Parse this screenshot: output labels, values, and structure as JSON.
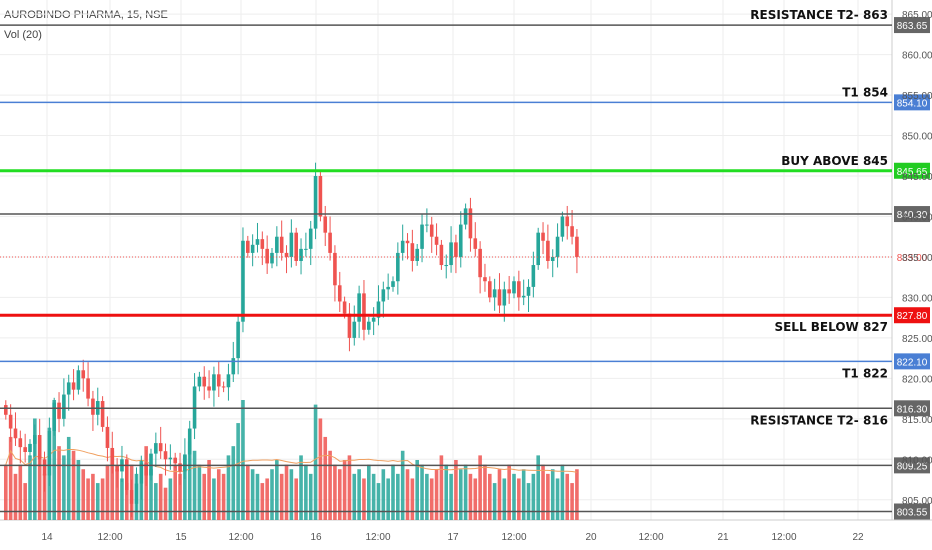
{
  "header": {
    "symbol_line": "AUROBINDO PHARMA, 15, NSE",
    "volume_label": "Vol (20)"
  },
  "colors": {
    "up": "#26a69a",
    "down": "#ef5350",
    "grid": "#eeeeee",
    "axis_text": "#555555",
    "gray_line": "#555555",
    "blue_line": "#4a7fd4",
    "green_line": "#22dd22",
    "red_line": "#ee1111",
    "ma_line": "#f0a060",
    "current_price": "#ef5350"
  },
  "chart_data": {
    "type": "candlestick",
    "y_axis": {
      "ticks": [
        "865.00",
        "860.00",
        "855.00",
        "850.00",
        "845.00",
        "840.00",
        "835.00",
        "830.00",
        "825.00",
        "820.00",
        "815.00",
        "810.00",
        "805.00"
      ],
      "range": [
        802.5,
        866.5
      ]
    },
    "x_axis": {
      "ticks": [
        "14",
        "12:00",
        "15",
        "12:00",
        "16",
        "12:00",
        "17",
        "12:00",
        "20",
        "12:00",
        "21",
        "12:00",
        "22"
      ]
    },
    "levels": [
      {
        "price": 863.65,
        "price_label": "863.65",
        "label": "RESISTANCE T2- 863",
        "style": "gray",
        "label_side": "above"
      },
      {
        "price": 854.1,
        "price_label": "854.10",
        "label": "T1 854",
        "style": "blue",
        "label_side": "above"
      },
      {
        "price": 845.65,
        "price_label": "845.65",
        "label": "BUY ABOVE 845",
        "style": "green",
        "label_side": "above"
      },
      {
        "price": 840.3,
        "price_label": "840.30",
        "label": "",
        "style": "gray",
        "label_side": "above"
      },
      {
        "price": 827.8,
        "price_label": "827.80",
        "label": "SELL BELOW 827",
        "style": "red",
        "label_side": "below"
      },
      {
        "price": 822.1,
        "price_label": "822.10",
        "label": "T1 822",
        "style": "blue",
        "label_side": "below"
      },
      {
        "price": 816.3,
        "price_label": "816.30",
        "label": "RESISTANCE T2- 816",
        "style": "gray",
        "label_side": "below"
      },
      {
        "price": 809.25,
        "price_label": "809.25",
        "label": "",
        "style": "gray",
        "label_side": "below"
      },
      {
        "price": 803.55,
        "price_label": "803.55",
        "label": "",
        "style": "gray",
        "label_side": "below"
      }
    ],
    "current_price": {
      "price": 835.0,
      "label": "835.00"
    },
    "series": [
      {
        "name": "",
        "type": "candlestick",
        "closes": [
          815.5,
          813.8,
          812.6,
          811.5,
          810.9,
          811.9,
          813.0,
          810.0,
          808.0,
          813.5,
          817.0,
          815.0,
          818.0,
          819.5,
          818.6,
          821.0,
          820.0,
          817.5,
          815.5,
          817.2,
          814.0,
          811.4,
          809.2,
          808.5,
          810.0,
          806.2,
          804.5,
          807.0,
          809.5,
          808.0,
          810.7,
          812.0,
          811.0,
          810.0,
          810.2,
          809.5,
          808.5,
          810.6,
          813.8,
          819.0,
          820.2,
          819.0,
          818.5,
          820.5,
          819.0,
          818.9,
          820.5,
          822.5,
          827.0,
          837.0,
          835.5,
          836.5,
          837.2,
          836.0,
          834.2,
          835.5,
          837.5,
          835.5,
          835.0,
          838.0,
          834.5,
          836.0,
          836.0,
          838.5,
          845.0,
          840.0,
          838.0,
          835.5,
          831.5,
          829.5,
          828.0,
          825.0,
          827.0,
          830.5,
          826.0,
          827.0,
          827.5,
          829.5,
          831.0,
          831.3,
          832.0,
          835.5,
          837.0,
          836.7,
          834.5,
          836.0,
          839.0,
          839.0,
          837.5,
          836.5,
          834.0,
          834.0,
          836.8,
          835.0,
          839.0,
          841.0,
          837.3,
          836.0,
          832.5,
          832.0,
          830.0,
          831.0,
          829.0,
          831.0,
          830.5,
          832.0,
          830.0,
          830.2,
          831.3,
          834.0,
          838.0,
          837.0,
          834.5,
          835.0,
          837.5,
          840.0,
          838.8,
          837.5,
          835.0
        ],
        "volumes": [
          12,
          18,
          10,
          12,
          8,
          14,
          22,
          14,
          10,
          20,
          26,
          16,
          14,
          18,
          15,
          13,
          11,
          9,
          10,
          8,
          9,
          12,
          15,
          11,
          9,
          8,
          12,
          10,
          13,
          16,
          11,
          8,
          10,
          7,
          9,
          12,
          10,
          14,
          17,
          15,
          12,
          10,
          13,
          9,
          11,
          10,
          14,
          16,
          21,
          26,
          12,
          11,
          10,
          8,
          9,
          11,
          13,
          10,
          12,
          11,
          9,
          14,
          12,
          10,
          25,
          22,
          18,
          15,
          12,
          11,
          13,
          14,
          10,
          11,
          9,
          12,
          10,
          8,
          11,
          9,
          12,
          10,
          15,
          11,
          9,
          13,
          12,
          10,
          9,
          11,
          14,
          12,
          10,
          13,
          11,
          12,
          10,
          9,
          14,
          12,
          10,
          8,
          11,
          9,
          12,
          10,
          9,
          11,
          8,
          10,
          14,
          12,
          10,
          11,
          9,
          12,
          10,
          8,
          11
        ]
      }
    ],
    "volume_ma": {
      "type": "line"
    }
  }
}
